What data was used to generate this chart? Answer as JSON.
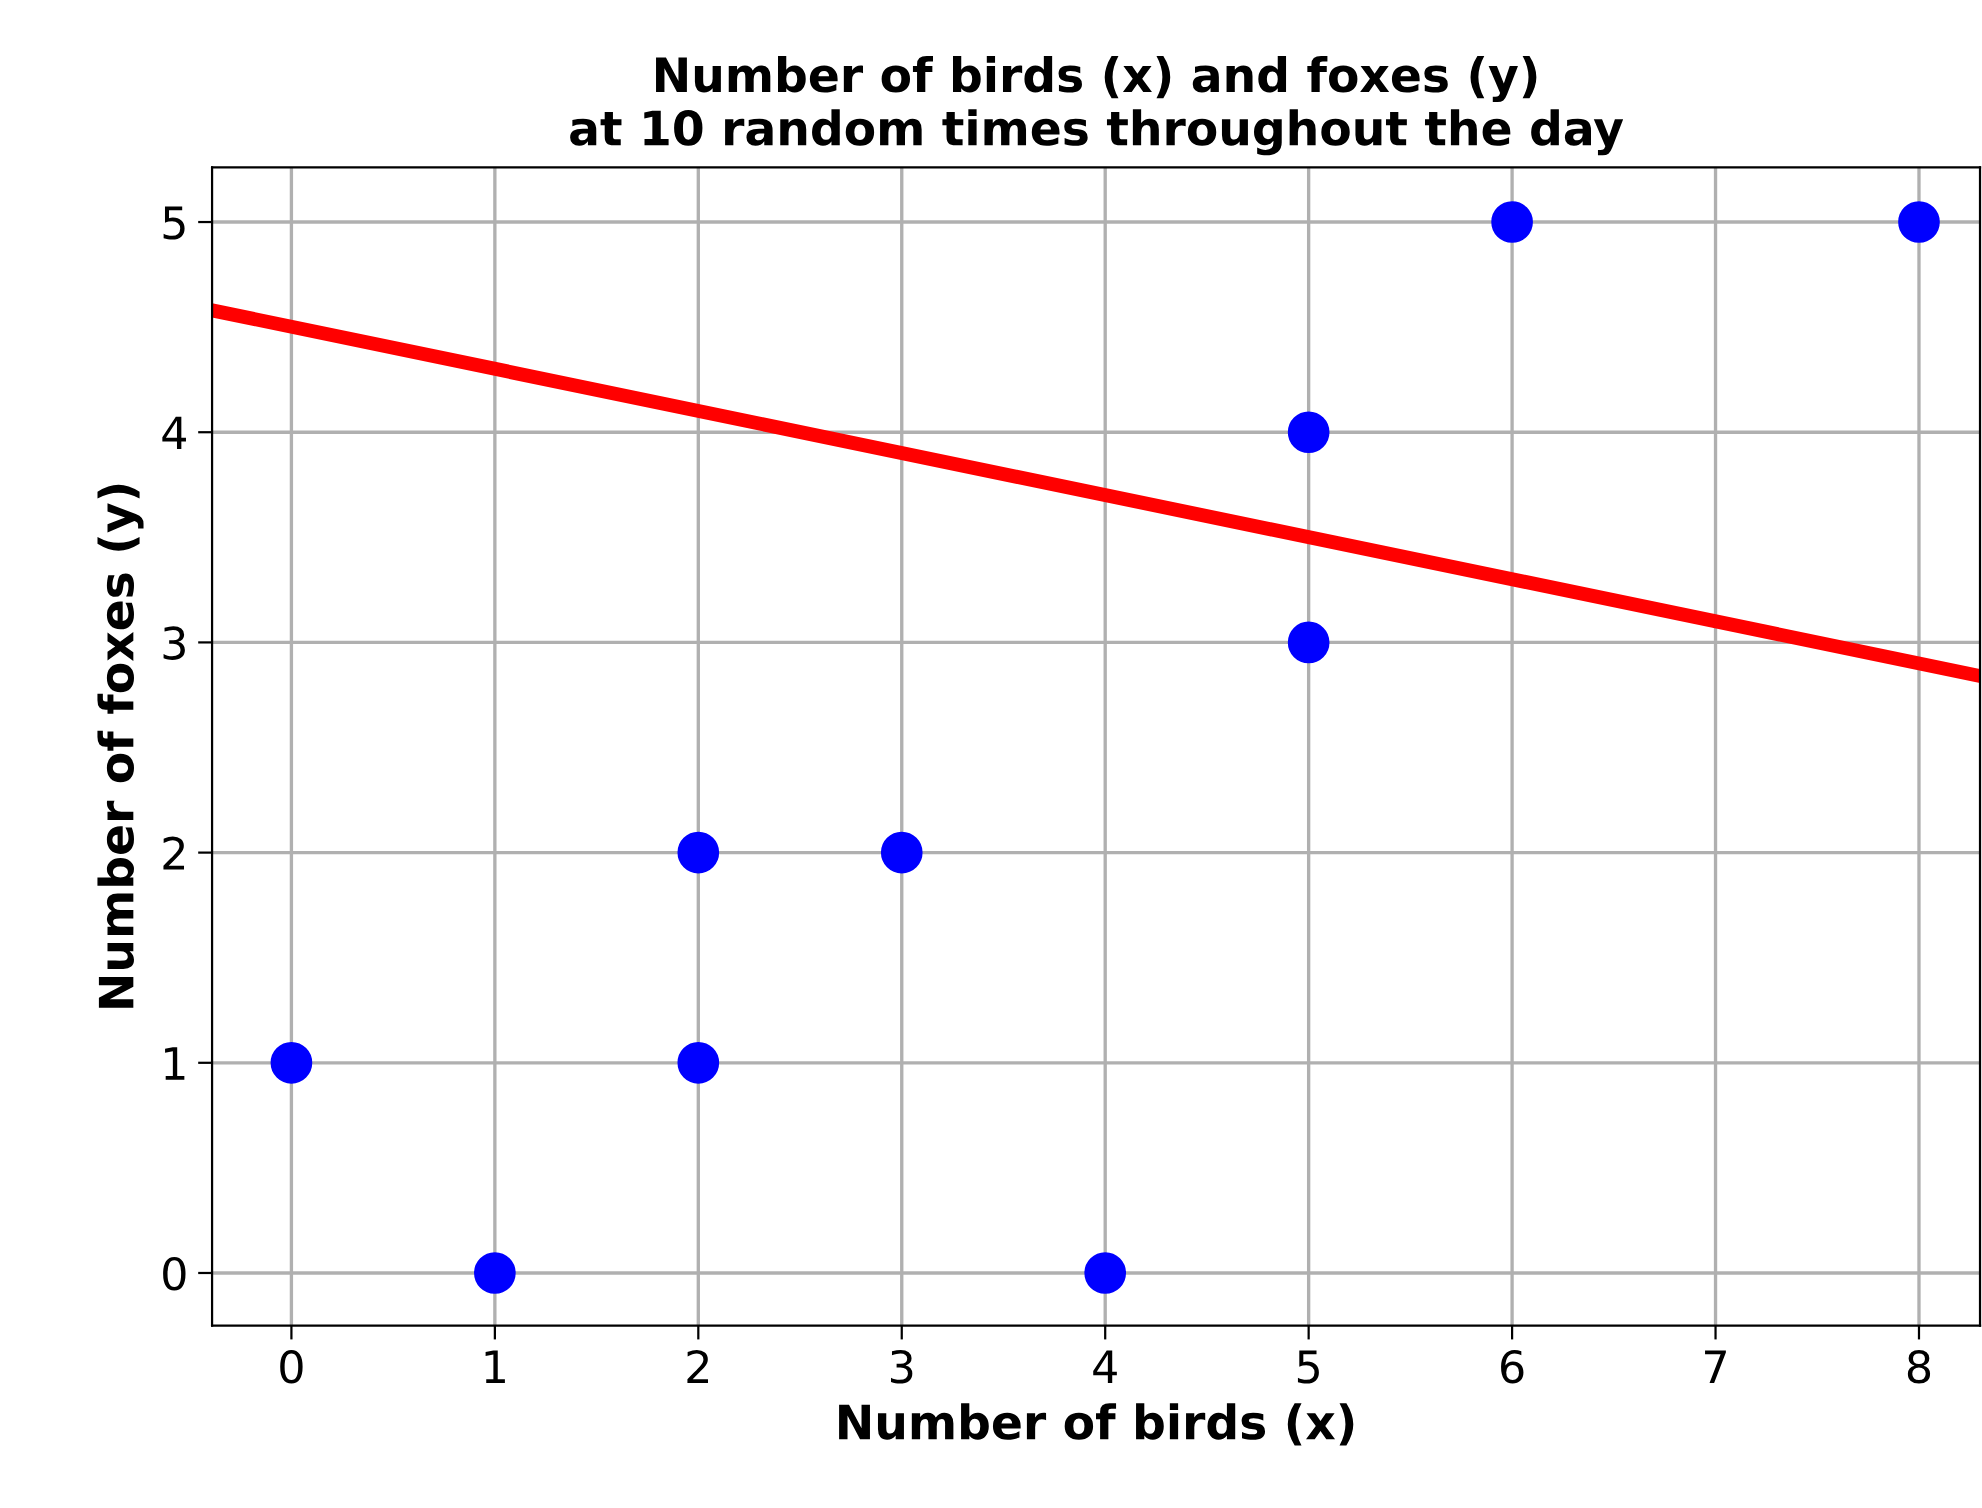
{
  "chart_data": {
    "type": "scatter",
    "title": "Number of birds (x) and foxes (y)\nat 10 random times throughout the day",
    "xlabel": "Number of birds (x)",
    "ylabel": "Number of foxes (y)",
    "xlim": [
      -0.39,
      8.3
    ],
    "ylim": [
      -0.25,
      5.26
    ],
    "xticks": [
      0,
      1,
      2,
      3,
      4,
      5,
      6,
      7,
      8
    ],
    "yticks": [
      0,
      1,
      2,
      3,
      4,
      5
    ],
    "grid": true,
    "series": [
      {
        "marker": "circle",
        "color": "#0000ff",
        "x": [
          0,
          1,
          2,
          2,
          3,
          4,
          5,
          5,
          6,
          8
        ],
        "values": [
          1,
          0,
          2,
          1,
          2,
          0,
          4,
          3,
          5,
          5
        ]
      },
      {
        "type": "line",
        "color": "#ff0000",
        "line_style": "solid",
        "x": [
          -0.39,
          8.3
        ],
        "values": [
          4.58,
          2.84
        ]
      }
    ]
  }
}
